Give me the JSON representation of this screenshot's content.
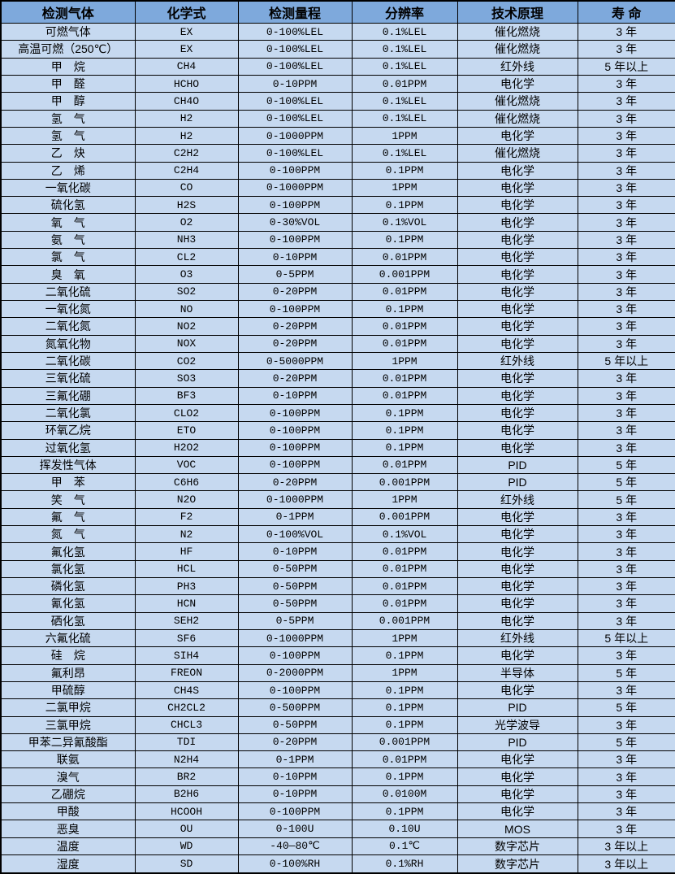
{
  "colors": {
    "header_bg": "#7ea9dc",
    "body_bg": "#c6d9f0",
    "grid": "#000000",
    "text": "#000000"
  },
  "table": {
    "columns": [
      "检测气体",
      "化学式",
      "检测量程",
      "分辨率",
      "技术原理",
      "寿 命"
    ],
    "rows": [
      [
        "可燃气体",
        "EX",
        "0-100%LEL",
        "0.1%LEL",
        "催化燃烧",
        "3 年"
      ],
      [
        "高温可燃（250℃）",
        "EX",
        "0-100%LEL",
        "0.1%LEL",
        "催化燃烧",
        "3 年"
      ],
      [
        "甲　烷",
        "CH4",
        "0-100%LEL",
        "0.1%LEL",
        "红外线",
        "5 年以上"
      ],
      [
        "甲　醛",
        "HCHO",
        "0-10PPM",
        "0.01PPM",
        "电化学",
        "3 年"
      ],
      [
        "甲　醇",
        "CH4O",
        "0-100%LEL",
        "0.1%LEL",
        "催化燃烧",
        "3 年"
      ],
      [
        "氢　气",
        "H2",
        "0-100%LEL",
        "0.1%LEL",
        "催化燃烧",
        "3 年"
      ],
      [
        "氢　气",
        "H2",
        "0-1000PPM",
        "1PPM",
        "电化学",
        "3 年"
      ],
      [
        "乙　炔",
        "C2H2",
        "0-100%LEL",
        "0.1%LEL",
        "催化燃烧",
        "3 年"
      ],
      [
        "乙　烯",
        "C2H4",
        "0-100PPM",
        "0.1PPM",
        "电化学",
        "3 年"
      ],
      [
        "一氧化碳",
        "CO",
        "0-1000PPM",
        "1PPM",
        "电化学",
        "3 年"
      ],
      [
        "硫化氢",
        "H2S",
        "0-100PPM",
        "0.1PPM",
        "电化学",
        "3 年"
      ],
      [
        "氧　气",
        "O2",
        "0-30%VOL",
        "0.1%VOL",
        "电化学",
        "3 年"
      ],
      [
        "氨　气",
        "NH3",
        "0-100PPM",
        "0.1PPM",
        "电化学",
        "3 年"
      ],
      [
        "氯　气",
        "CL2",
        "0-10PPM",
        "0.01PPM",
        "电化学",
        "3 年"
      ],
      [
        "臭　氧",
        "O3",
        "0-5PPM",
        "0.001PPM",
        "电化学",
        "3 年"
      ],
      [
        "二氧化硫",
        "SO2",
        "0-20PPM",
        "0.01PPM",
        "电化学",
        "3 年"
      ],
      [
        "一氧化氮",
        "NO",
        "0-100PPM",
        "0.1PPM",
        "电化学",
        "3 年"
      ],
      [
        "二氧化氮",
        "NO2",
        "0-20PPM",
        "0.01PPM",
        "电化学",
        "3 年"
      ],
      [
        "氮氧化物",
        "NOX",
        "0-20PPM",
        "0.01PPM",
        "电化学",
        "3 年"
      ],
      [
        "二氧化碳",
        "CO2",
        "0-5000PPM",
        "1PPM",
        "红外线",
        "5 年以上"
      ],
      [
        "三氧化硫",
        "SO3",
        "0-20PPM",
        "0.01PPM",
        "电化学",
        "3 年"
      ],
      [
        "三氟化硼",
        "BF3",
        "0-10PPM",
        "0.01PPM",
        "电化学",
        "3 年"
      ],
      [
        "二氧化氯",
        "CLO2",
        "0-100PPM",
        "0.1PPM",
        "电化学",
        "3 年"
      ],
      [
        "环氧乙烷",
        "ETO",
        "0-100PPM",
        "0.1PPM",
        "电化学",
        "3 年"
      ],
      [
        "过氧化氢",
        "H2O2",
        "0-100PPM",
        "0.1PPM",
        "电化学",
        "3 年"
      ],
      [
        "挥发性气体",
        "VOC",
        "0-100PPM",
        "0.01PPM",
        "PID",
        "5 年"
      ],
      [
        "甲　苯",
        "C6H6",
        "0-20PPM",
        "0.001PPM",
        "PID",
        "5 年"
      ],
      [
        "笑　气",
        "N2O",
        "0-1000PPM",
        "1PPM",
        "红外线",
        "5 年"
      ],
      [
        "氟　气",
        "F2",
        "0-1PPM",
        "0.001PPM",
        "电化学",
        "3 年"
      ],
      [
        "氮　气",
        "N2",
        "0-100%VOL",
        "0.1%VOL",
        "电化学",
        "3 年"
      ],
      [
        "氟化氢",
        "HF",
        "0-10PPM",
        "0.01PPM",
        "电化学",
        "3 年"
      ],
      [
        "氯化氢",
        "HCL",
        "0-50PPM",
        "0.01PPM",
        "电化学",
        "3 年"
      ],
      [
        "磷化氢",
        "PH3",
        "0-50PPM",
        "0.01PPM",
        "电化学",
        "3 年"
      ],
      [
        "氰化氢",
        "HCN",
        "0-50PPM",
        "0.01PPM",
        "电化学",
        "3 年"
      ],
      [
        "硒化氢",
        "SEH2",
        "0-5PPM",
        "0.001PPM",
        "电化学",
        "3 年"
      ],
      [
        "六氟化硫",
        "SF6",
        "0-1000PPM",
        "1PPM",
        "红外线",
        "5 年以上"
      ],
      [
        "硅　烷",
        "SIH4",
        "0-100PPM",
        "0.1PPM",
        "电化学",
        "3 年"
      ],
      [
        "氟利昂",
        "FREON",
        "0-2000PPM",
        "1PPM",
        "半导体",
        "5 年"
      ],
      [
        "甲硫醇",
        "CH4S",
        "0-100PPM",
        "0.1PPM",
        "电化学",
        "3 年"
      ],
      [
        "二氯甲烷",
        "CH2CL2",
        "0-500PPM",
        "0.1PPM",
        "PID",
        "5 年"
      ],
      [
        "三氯甲烷",
        "CHCL3",
        "0-50PPM",
        "0.1PPM",
        "光学波导",
        "3 年"
      ],
      [
        "甲苯二异氰酸酯",
        "TDI",
        "0-20PPM",
        "0.001PPM",
        "PID",
        "5 年"
      ],
      [
        "联氨",
        "N2H4",
        "0-1PPM",
        "0.01PPM",
        "电化学",
        "3 年"
      ],
      [
        "溴气",
        "BR2",
        "0-10PPM",
        "0.1PPM",
        "电化学",
        "3 年"
      ],
      [
        "乙硼烷",
        "B2H6",
        "0-10PPM",
        "0.0100M",
        "电化学",
        "3 年"
      ],
      [
        "甲酸",
        "HCOOH",
        "0-100PPM",
        "0.1PPM",
        "电化学",
        "3 年"
      ],
      [
        "恶臭",
        "OU",
        "0-100U",
        "0.10U",
        "MOS",
        "3 年"
      ],
      [
        "温度",
        "WD",
        "-40—80℃",
        "0.1℃",
        "数字芯片",
        "3 年以上"
      ],
      [
        "湿度",
        "SD",
        "0-100%RH",
        "0.1%RH",
        "数字芯片",
        "3 年以上"
      ]
    ]
  }
}
